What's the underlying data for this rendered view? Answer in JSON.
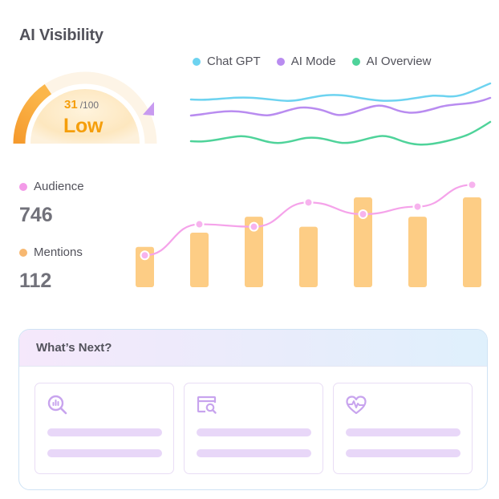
{
  "title": "AI Visibility",
  "gauge": {
    "score": "31",
    "max": "/100",
    "level": "Low",
    "fraction": 0.31,
    "colors": {
      "fill": "#f5a623",
      "track": "#fdf3e3",
      "marker": "#c89af0"
    }
  },
  "legend": [
    {
      "label": "Chat GPT",
      "color": "#6dd3f0"
    },
    {
      "label": "AI Mode",
      "color": "#b98cf0"
    },
    {
      "label": "AI Overview",
      "color": "#4fd39a"
    }
  ],
  "stats": {
    "audience": {
      "label": "Audience",
      "value": "746",
      "color": "#f39ae8"
    },
    "mentions": {
      "label": "Mentions",
      "value": "112",
      "color": "#f7b871"
    }
  },
  "chart_data": {
    "type": "bar",
    "categories": [
      "",
      "",
      "",
      "",
      "",
      "",
      ""
    ],
    "series": [
      {
        "values": [
          48,
          65,
          84,
          72,
          107,
          84,
          107
        ],
        "color": "#fdcd85"
      },
      {
        "values": [
          38,
          75,
          72,
          101,
          87,
          96,
          122
        ],
        "color": "#f5a3ea"
      }
    ],
    "ylim": [
      0,
      130
    ]
  },
  "next": {
    "title": "What’s Next?",
    "cards": [
      {
        "icon": "search-analytics-icon"
      },
      {
        "icon": "browser-search-icon"
      },
      {
        "icon": "heart-pulse-icon"
      }
    ]
  }
}
